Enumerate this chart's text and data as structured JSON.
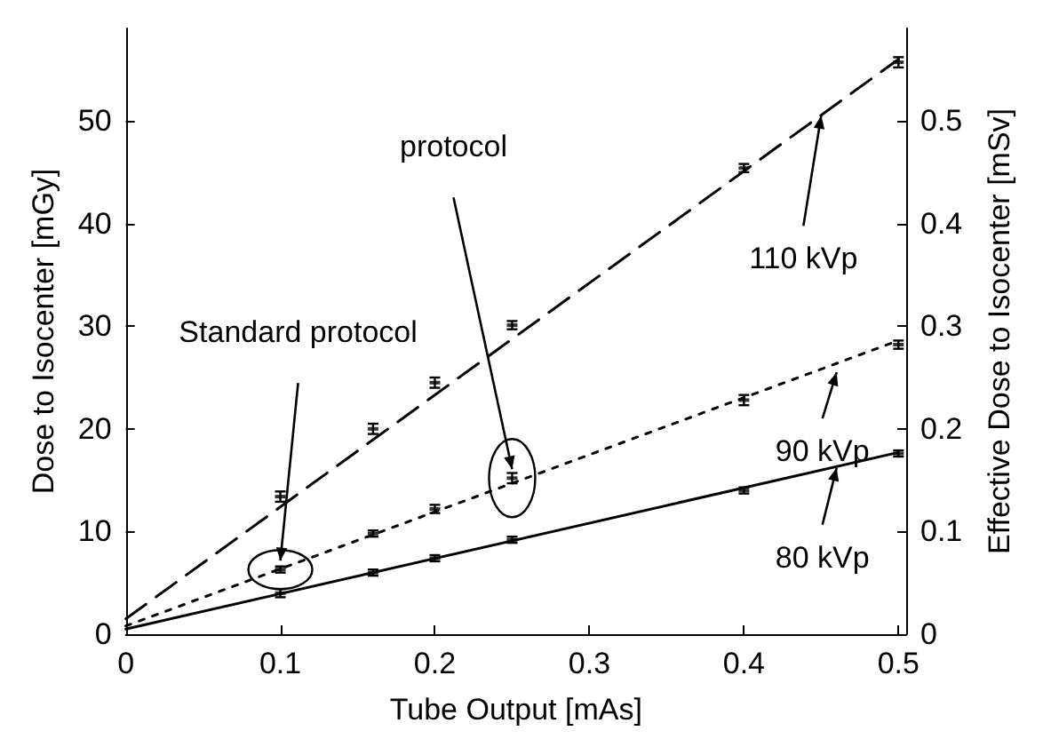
{
  "chart_data": {
    "type": "line",
    "xlabel": "Tube Output [mAs]",
    "ylabel": "Dose to Isocenter [mGy]",
    "y2label": "Effective Dose to Isocenter [mSv]",
    "xlim": [
      0,
      0.505
    ],
    "xticks": [
      0,
      0.1,
      0.2,
      0.3,
      0.4,
      0.5
    ],
    "ylim": [
      0,
      59
    ],
    "yticks": [
      0,
      10,
      20,
      30,
      40,
      50
    ],
    "y2lim": [
      0,
      0.59
    ],
    "y2ticks": [
      0,
      0.1,
      0.2,
      0.3,
      0.4,
      0.5
    ],
    "grid": false,
    "series": [
      {
        "color": "#000000",
        "line_style": "dashed",
        "x": [
          0,
          0.5
        ],
        "values": [
          1.5,
          56
        ]
      },
      {
        "color": "#000000",
        "line_style": "dotted",
        "x": [
          0,
          0.5
        ],
        "values": [
          0.8,
          28.6
        ]
      },
      {
        "color": "#000000",
        "line_style": "solid",
        "x": [
          0,
          0.5
        ],
        "values": [
          0.5,
          17.7
        ]
      },
      {
        "type": "scatter",
        "color": "#000000",
        "x": [
          0.1,
          0.16,
          0.2,
          0.25,
          0.4,
          0.5
        ],
        "values": [
          13.4,
          20,
          24.5,
          30.1,
          45.4,
          55.7
        ],
        "errors": [
          0.5,
          0.5,
          0.5,
          0.4,
          0.4,
          0.5
        ]
      },
      {
        "type": "scatter",
        "color": "#000000",
        "x": [
          0.1,
          0.16,
          0.2,
          0.25,
          0.4,
          0.5
        ],
        "values": [
          6.3,
          9.8,
          12.2,
          15.2,
          22.8,
          28.2
        ],
        "errors": [
          0.3,
          0.3,
          0.4,
          0.5,
          0.5,
          0.4
        ]
      },
      {
        "type": "scatter",
        "color": "#000000",
        "x": [
          0.1,
          0.16,
          0.2,
          0.25,
          0.4,
          0.5
        ],
        "values": [
          4,
          6,
          7.4,
          9.2,
          14,
          17.6
        ],
        "errors": [
          0.4,
          0.3,
          0.3,
          0.3,
          0.3,
          0.3
        ]
      }
    ],
    "annotations": [
      {
        "text": "110 kVp",
        "x": 0.45,
        "y": 50.5
      },
      {
        "text": "90 kVp",
        "x": 0.46,
        "y": 25.5
      },
      {
        "text": "80 kVp",
        "x": 0.46,
        "y": 16.2
      },
      {
        "text": "Standard protocol",
        "x": 0.1,
        "y": 6.3
      },
      {
        "text": "protocol",
        "x": 0.25,
        "y": 15.2
      }
    ]
  }
}
